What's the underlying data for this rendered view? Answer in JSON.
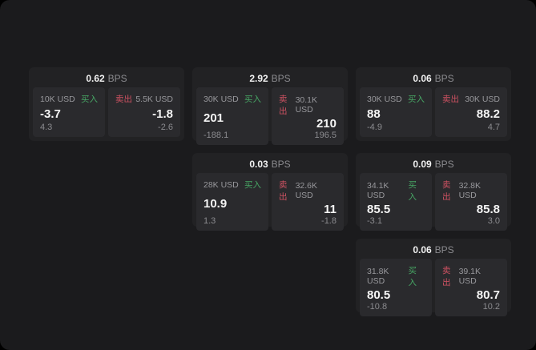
{
  "page": {
    "background": "#000000",
    "surface": "#1b1b1d",
    "card_bg": "#222224",
    "panel_bg": "#2a2a2d",
    "accent_green": "#47a564",
    "accent_red": "#cf5262",
    "text_primary": "#f5f5f5",
    "text_muted": "#8b8b8f"
  },
  "labels": {
    "bps_unit": "BPS",
    "buy": "买入",
    "sell": "卖出"
  },
  "cards": [
    {
      "grid": {
        "row": 1,
        "col": 1
      },
      "bps": "0.62",
      "buy": {
        "amount": "10K USD",
        "price": "-3.7",
        "delta": "4.3"
      },
      "sell": {
        "amount": "5.5K USD",
        "price": "-1.8",
        "delta": "-2.6"
      }
    },
    {
      "grid": {
        "row": 1,
        "col": 2
      },
      "bps": "2.92",
      "buy": {
        "amount": "30K USD",
        "price": "201",
        "delta": "-188.1"
      },
      "sell": {
        "amount": "30.1K USD",
        "price": "210",
        "delta": "196.5"
      }
    },
    {
      "grid": {
        "row": 1,
        "col": 3
      },
      "bps": "0.06",
      "buy": {
        "amount": "30K USD",
        "price": "88",
        "delta": "-4.9"
      },
      "sell": {
        "amount": "30K USD",
        "price": "88.2",
        "delta": "4.7"
      }
    },
    {
      "grid": {
        "row": 2,
        "col": 2
      },
      "bps": "0.03",
      "buy": {
        "amount": "28K USD",
        "price": "10.9",
        "delta": "1.3"
      },
      "sell": {
        "amount": "32.6K USD",
        "price": "11",
        "delta": "-1.8"
      }
    },
    {
      "grid": {
        "row": 2,
        "col": 3
      },
      "bps": "0.09",
      "buy": {
        "amount": "34.1K USD",
        "price": "85.5",
        "delta": "-3.1"
      },
      "sell": {
        "amount": "32.8K USD",
        "price": "85.8",
        "delta": "3.0"
      }
    },
    {
      "grid": {
        "row": 3,
        "col": 3
      },
      "bps": "0.06",
      "buy": {
        "amount": "31.8K USD",
        "price": "80.5",
        "delta": "-10.8"
      },
      "sell": {
        "amount": "39.1K USD",
        "price": "80.7",
        "delta": "10.2"
      }
    }
  ]
}
